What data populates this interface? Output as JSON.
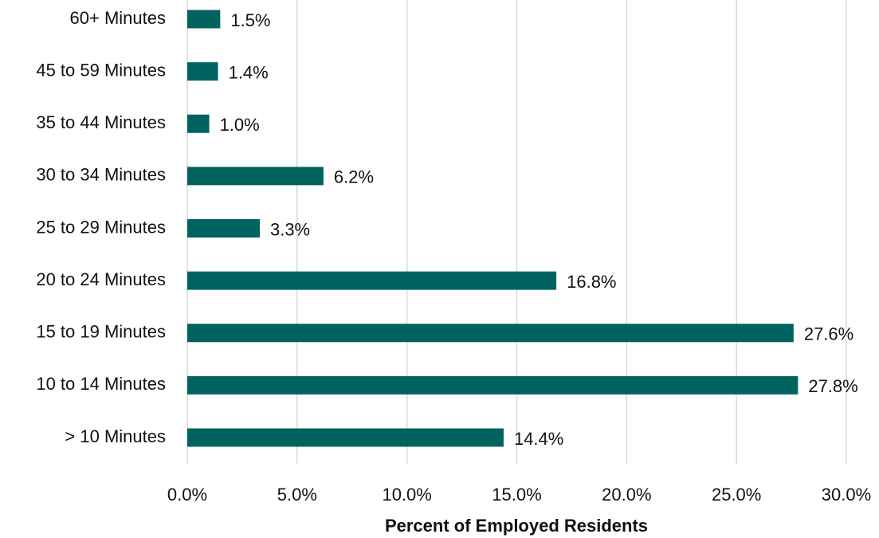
{
  "chart_data": {
    "type": "bar",
    "orientation": "horizontal",
    "categories": [
      "60+ Minutes",
      "45 to 59 Minutes",
      "35 to 44 Minutes",
      "30 to 34 Minutes",
      "25 to 29 Minutes",
      "20 to 24 Minutes",
      "15 to 19 Minutes",
      "10 to 14 Minutes",
      "> 10 Minutes"
    ],
    "values": [
      1.5,
      1.4,
      1.0,
      6.2,
      3.3,
      16.8,
      27.6,
      27.8,
      14.4
    ],
    "value_labels": [
      "1.5%",
      "1.4%",
      "1.0%",
      "6.2%",
      "3.3%",
      "16.8%",
      "27.6%",
      "27.8%",
      "14.4%"
    ],
    "color": "#00635f",
    "xlabel": "Percent of Employed Residents",
    "xlim": [
      0,
      30
    ],
    "xticks": [
      {
        "value": 0,
        "label": "0.0%"
      },
      {
        "value": 5,
        "label": "5.0%"
      },
      {
        "value": 10,
        "label": "10.0%"
      },
      {
        "value": 15,
        "label": "15.0%"
      },
      {
        "value": 20,
        "label": "20.0%"
      },
      {
        "value": 25,
        "label": "25.0%"
      },
      {
        "value": 30,
        "label": "30.0%"
      }
    ],
    "grid": true
  }
}
